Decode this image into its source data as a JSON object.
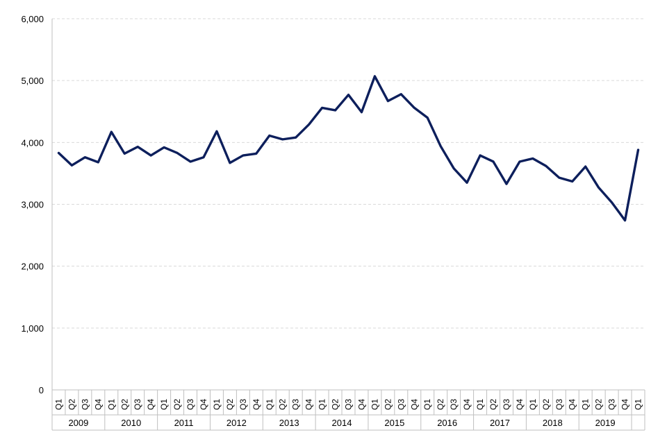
{
  "chart_data": {
    "type": "line",
    "title": "",
    "xlabel": "",
    "ylabel": "",
    "ylim": [
      0,
      6000
    ],
    "yticks": [
      0,
      1000,
      2000,
      3000,
      4000,
      5000,
      6000
    ],
    "ytick_labels": [
      "0",
      "1,000",
      "2,000",
      "3,000",
      "4,000",
      "5,000",
      "6,000"
    ],
    "grid": true,
    "legend": "none",
    "colors": {
      "line": "#0d1f5c",
      "grid": "#d9d9d9",
      "axis": "#bfbfbf"
    },
    "years": [
      "2009",
      "2010",
      "2011",
      "2012",
      "2013",
      "2014",
      "2015",
      "2016",
      "2017",
      "2018",
      "2019"
    ],
    "x": [
      "Q1",
      "Q2",
      "Q3",
      "Q4",
      "Q1",
      "Q2",
      "Q3",
      "Q4",
      "Q1",
      "Q2",
      "Q3",
      "Q4",
      "Q1",
      "Q2",
      "Q3",
      "Q4",
      "Q1",
      "Q2",
      "Q3",
      "Q4",
      "Q1",
      "Q2",
      "Q3",
      "Q4",
      "Q1",
      "Q2",
      "Q3",
      "Q4",
      "Q1",
      "Q2",
      "Q3",
      "Q4",
      "Q1",
      "Q2",
      "Q3",
      "Q4",
      "Q1",
      "Q2",
      "Q3",
      "Q4",
      "Q1",
      "Q2",
      "Q3",
      "Q4",
      "Q1"
    ],
    "series": [
      {
        "values": [
          3830,
          3630,
          3760,
          3680,
          4170,
          3820,
          3930,
          3790,
          3920,
          3830,
          3690,
          3760,
          4180,
          3670,
          3790,
          3820,
          4110,
          4050,
          4080,
          4290,
          4560,
          4520,
          4770,
          4490,
          5070,
          4670,
          4780,
          4560,
          4400,
          3940,
          3580,
          3350,
          3790,
          3690,
          3330,
          3690,
          3740,
          3620,
          3430,
          3370,
          3610,
          3270,
          3030,
          2740,
          3880
        ]
      }
    ]
  }
}
